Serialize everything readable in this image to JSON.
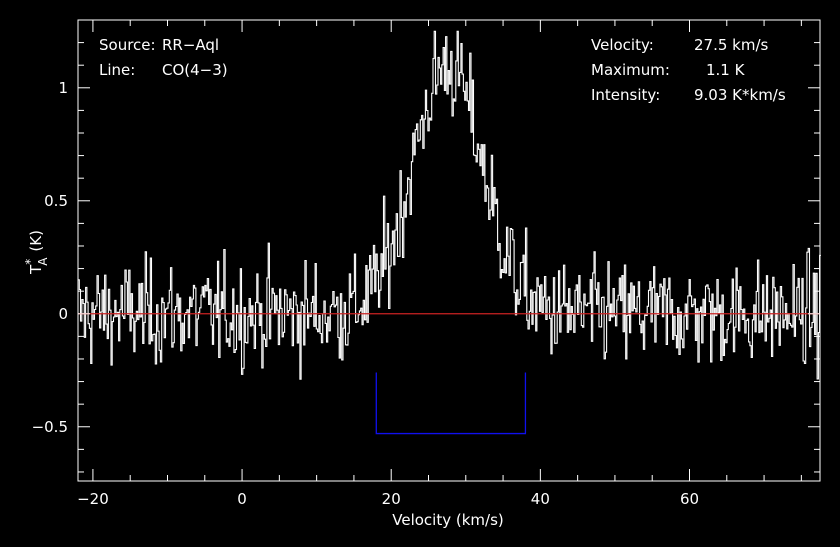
{
  "chart_data": {
    "type": "line",
    "xlabel": "Velocity (km/s)",
    "ylabel_main": "T",
    "ylabel_sup": "*",
    "ylabel_sub": "A",
    "ylabel_unit": "(K)",
    "xlim": [
      -22,
      77.5
    ],
    "ylim": [
      -0.74,
      1.3
    ],
    "x_ticks": [
      -20,
      0,
      20,
      40,
      60
    ],
    "y_ticks": [
      -0.5,
      0,
      0.5,
      1
    ],
    "x_tick_labels": [
      "−20",
      "0",
      "20",
      "40",
      "60"
    ],
    "y_tick_labels": [
      "−0.5",
      "0",
      "0.5",
      "1"
    ],
    "baseline": 0,
    "window": {
      "x_start": 18,
      "x_end": 38,
      "y_bottom": -0.53,
      "y_top": -0.26
    },
    "profile": {
      "center": 27.5,
      "peak": 1.1,
      "half_width": 5.5
    },
    "series": [
      {
        "name": "",
        "sampling": "≈0.17 km/s, noise rms ≈0.2 K",
        "x": [
          -20,
          -15,
          -10,
          -5,
          0,
          5,
          10,
          15,
          18,
          20,
          22,
          24,
          26,
          27.5,
          29,
          31,
          33,
          35,
          37,
          40,
          45,
          50,
          55,
          60,
          65,
          70,
          75
        ],
        "values": [
          0,
          0,
          0,
          0,
          0,
          0,
          0,
          0,
          0.02,
          0.15,
          0.42,
          0.73,
          0.98,
          1.1,
          0.98,
          0.73,
          0.42,
          0.18,
          0.05,
          0,
          0,
          0,
          0,
          0,
          0,
          0,
          0
        ]
      }
    ]
  },
  "info": {
    "source_label": "Source:",
    "source_value": "RR−Aql",
    "line_label": "Line:",
    "line_value": "CO(4−3)",
    "velocity_label": "Velocity:",
    "velocity_value": "27.5 km/s",
    "maximum_label": "Maximum:",
    "maximum_value": "1.1 K",
    "intensity_label": "Intensity:",
    "intensity_value": "9.03 K*km/s"
  },
  "colors": {
    "background": "#000000",
    "axes": "#ffffff",
    "spectrum": "#ffffff",
    "baseline": "#cc2222",
    "window": "#1010ee"
  }
}
